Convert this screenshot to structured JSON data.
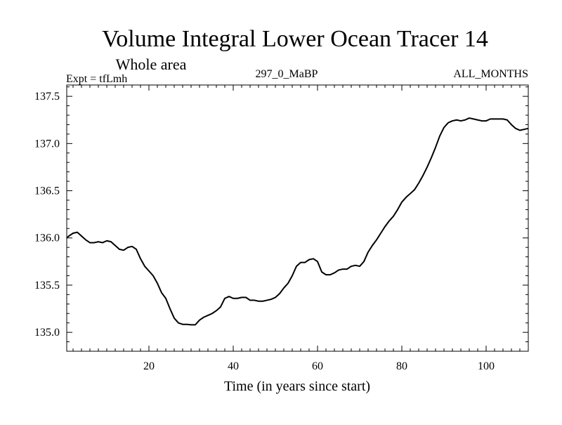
{
  "chart_data": {
    "type": "line",
    "title": "Volume Integral Lower Ocean Tracer 14",
    "subtitle": "Whole area",
    "expt_label": "Expt = tfLmh",
    "center_label": "297_0_MaBP",
    "right_label": "ALL_MONTHS",
    "xlabel": "Time (in years since start)",
    "ylabel": "",
    "xlim": [
      0.5,
      110
    ],
    "ylim": [
      134.8,
      137.62
    ],
    "x_ticks": [
      20,
      40,
      60,
      80,
      100
    ],
    "y_ticks": [
      135.0,
      135.5,
      136.0,
      136.5,
      137.0,
      137.5
    ],
    "y_tick_labels": [
      "135.0",
      "135.5",
      "136.0",
      "136.5",
      "137.0",
      "137.5"
    ],
    "x_minor_step": 2,
    "y_minor_step": 0.1,
    "grid": false,
    "line_color": "#000000",
    "series": [
      {
        "name": "tfLmh",
        "x": [
          0.5,
          1,
          2,
          3,
          4,
          5,
          6,
          7,
          8,
          9,
          10,
          11,
          12,
          13,
          14,
          15,
          16,
          17,
          18,
          19,
          20,
          21,
          22,
          23,
          24,
          25,
          26,
          27,
          28,
          29,
          30,
          31,
          32,
          33,
          34,
          35,
          36,
          37,
          38,
          39,
          40,
          41,
          42,
          43,
          44,
          45,
          46,
          47,
          48,
          49,
          50,
          51,
          52,
          53,
          54,
          55,
          56,
          57,
          58,
          59,
          60,
          61,
          62,
          63,
          64,
          65,
          66,
          67,
          68,
          69,
          70,
          71,
          72,
          73,
          74,
          75,
          76,
          77,
          78,
          79,
          80,
          81,
          82,
          83,
          84,
          85,
          86,
          87,
          88,
          89,
          90,
          91,
          92,
          93,
          94,
          95,
          96,
          97,
          98,
          99,
          100,
          101,
          102,
          103,
          104,
          105,
          106,
          107,
          108,
          109,
          110
        ],
        "values": [
          136.0,
          136.02,
          136.05,
          136.06,
          136.02,
          135.98,
          135.95,
          135.95,
          135.96,
          135.95,
          135.97,
          135.96,
          135.92,
          135.88,
          135.87,
          135.9,
          135.91,
          135.88,
          135.78,
          135.7,
          135.65,
          135.6,
          135.52,
          135.42,
          135.36,
          135.25,
          135.15,
          135.1,
          135.085,
          135.085,
          135.08,
          135.08,
          135.13,
          135.16,
          135.18,
          135.2,
          135.23,
          135.27,
          135.36,
          135.38,
          135.36,
          135.36,
          135.37,
          135.37,
          135.34,
          135.34,
          135.33,
          135.33,
          135.34,
          135.35,
          135.37,
          135.41,
          135.47,
          135.52,
          135.6,
          135.7,
          135.74,
          135.74,
          135.77,
          135.78,
          135.75,
          135.64,
          135.61,
          135.61,
          135.63,
          135.66,
          135.67,
          135.67,
          135.7,
          135.71,
          135.7,
          135.75,
          135.85,
          135.92,
          135.98,
          136.05,
          136.12,
          136.18,
          136.23,
          136.3,
          136.38,
          136.43,
          136.47,
          136.51,
          136.58,
          136.66,
          136.75,
          136.85,
          136.96,
          137.08,
          137.17,
          137.22,
          137.24,
          137.25,
          137.24,
          137.25,
          137.27,
          137.26,
          137.25,
          137.24,
          137.24,
          137.26,
          137.26,
          137.26,
          137.26,
          137.25,
          137.2,
          137.16,
          137.14,
          137.15,
          137.16
        ]
      }
    ]
  }
}
